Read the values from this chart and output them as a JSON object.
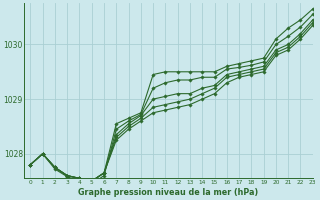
{
  "background_color": "#cce8ec",
  "grid_color": "#aacfd4",
  "line_color": "#2d6a2d",
  "title": "Graphe pression niveau de la mer (hPa)",
  "xlim": [
    -0.5,
    23
  ],
  "ylim": [
    1027.55,
    1030.75
  ],
  "yticks": [
    1028,
    1029,
    1030
  ],
  "xticks": [
    0,
    1,
    2,
    3,
    4,
    5,
    6,
    7,
    8,
    9,
    10,
    11,
    12,
    13,
    14,
    15,
    16,
    17,
    18,
    19,
    20,
    21,
    22,
    23
  ],
  "series": [
    {
      "x": [
        0,
        1,
        2,
        3,
        4,
        5,
        6,
        7,
        8,
        9,
        10,
        11,
        12,
        13,
        14,
        15,
        16,
        17,
        18,
        19,
        20,
        21,
        22,
        23
      ],
      "y": [
        1027.8,
        1028.0,
        1027.75,
        1027.6,
        1027.55,
        1027.5,
        1027.65,
        1028.55,
        1028.65,
        1028.75,
        1029.45,
        1029.5,
        1029.5,
        1029.5,
        1029.5,
        1029.5,
        1029.6,
        1029.65,
        1029.7,
        1029.75,
        1030.1,
        1030.3,
        1030.45,
        1030.65
      ]
    },
    {
      "x": [
        0,
        1,
        2,
        3,
        4,
        5,
        6,
        7,
        8,
        9,
        10,
        11,
        12,
        13,
        14,
        15,
        16,
        17,
        18,
        19,
        20,
        21,
        22,
        23
      ],
      "y": [
        1027.8,
        1028.0,
        1027.75,
        1027.6,
        1027.55,
        1027.5,
        1027.65,
        1028.35,
        1028.55,
        1028.7,
        1029.0,
        1029.05,
        1029.1,
        1029.1,
        1029.2,
        1029.25,
        1029.45,
        1029.5,
        1029.55,
        1029.6,
        1029.9,
        1030.0,
        1030.2,
        1030.45
      ]
    },
    {
      "x": [
        0,
        1,
        2,
        3,
        4,
        5,
        6,
        7,
        8,
        9,
        10,
        11,
        12,
        13,
        14,
        15,
        16,
        17,
        18,
        19,
        20,
        21,
        22,
        23
      ],
      "y": [
        1027.8,
        1028.0,
        1027.75,
        1027.6,
        1027.55,
        1027.5,
        1027.65,
        1028.3,
        1028.5,
        1028.65,
        1028.85,
        1028.9,
        1028.95,
        1029.0,
        1029.1,
        1029.2,
        1029.4,
        1029.45,
        1029.5,
        1029.55,
        1029.85,
        1029.95,
        1030.15,
        1030.4
      ]
    },
    {
      "x": [
        0,
        1,
        2,
        3,
        4,
        5,
        6,
        7,
        8,
        9,
        10,
        11,
        12,
        13,
        14,
        15,
        16,
        17,
        18,
        19,
        20,
        21,
        22,
        23
      ],
      "y": [
        1027.8,
        1028.0,
        1027.75,
        1027.6,
        1027.55,
        1027.5,
        1027.65,
        1028.25,
        1028.45,
        1028.6,
        1028.75,
        1028.8,
        1028.85,
        1028.9,
        1029.0,
        1029.1,
        1029.3,
        1029.4,
        1029.45,
        1029.5,
        1029.8,
        1029.9,
        1030.1,
        1030.35
      ]
    },
    {
      "x": [
        0,
        1,
        2,
        3,
        4,
        5,
        6,
        7,
        8,
        9,
        10,
        11,
        12,
        13,
        14,
        15,
        16,
        17,
        18,
        19,
        20,
        21,
        22,
        23
      ],
      "y": [
        1027.8,
        1028.0,
        1027.72,
        1027.58,
        1027.5,
        1027.45,
        1027.6,
        1028.45,
        1028.6,
        1028.72,
        1029.2,
        1029.3,
        1029.35,
        1029.35,
        1029.4,
        1029.4,
        1029.55,
        1029.58,
        1029.62,
        1029.68,
        1030.0,
        1030.15,
        1030.32,
        1030.55
      ]
    }
  ]
}
